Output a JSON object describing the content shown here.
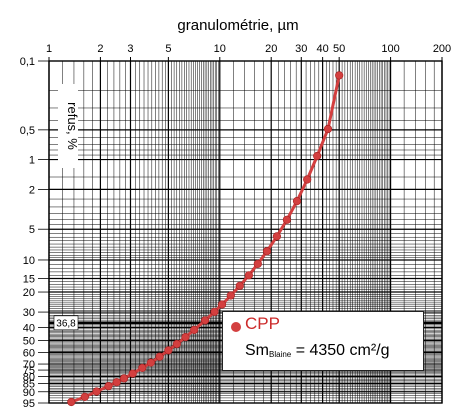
{
  "chart_data": {
    "type": "line",
    "subtype": "rosin-rammler-sperling-bennett",
    "title": "granulométrie, µm",
    "xlabel": "granulométrie, µm",
    "ylabel": "refus, %",
    "x_scale": "log",
    "y_scale": "rrsb",
    "xlim": [
      1,
      200
    ],
    "ylim": [
      0.1,
      95
    ],
    "grid": true,
    "x_ticks": [
      "1",
      "2",
      "3",
      "5",
      "10",
      "20",
      "30",
      "40",
      "50",
      "100",
      "200"
    ],
    "y_ticks": [
      "0,1",
      "0,5",
      "1",
      "2",
      "5",
      "10",
      "15",
      "20",
      "30",
      "40",
      "50",
      "60",
      "70",
      "75",
      "80",
      "85",
      "90",
      "95"
    ],
    "reference_line": {
      "label": "36,8",
      "y": 36.8
    },
    "legend_position": "bottom-right",
    "series": [
      {
        "name": "CPP",
        "color": "#d33f3f",
        "x": [
          1.35,
          1.62,
          1.9,
          2.23,
          2.49,
          2.75,
          3.09,
          3.52,
          3.95,
          4.44,
          5.0,
          5.61,
          6.3,
          7.08,
          8.2,
          9.31,
          10.3,
          11.6,
          13.1,
          14.8,
          16.7,
          18.9,
          21.6,
          24.7,
          28.3,
          32.5,
          37.2,
          43.0,
          50.0
        ],
        "values": [
          94.65,
          92.53,
          89.84,
          86.68,
          84.11,
          81.43,
          77.84,
          73.25,
          68.77,
          63.72,
          58.21,
          52.89,
          47.3,
          41.83,
          35.2,
          29.86,
          25.85,
          21.49,
          17.53,
          14.0,
          10.92,
          8.23,
          5.89,
          4.03,
          2.62,
          1.59,
          0.92,
          0.49,
          0.14
        ]
      }
    ]
  },
  "legend": {
    "series_label": "CPP",
    "note_prefix": "Sm",
    "note_subscript": "Blaine",
    "note_value": " = 4350 cm²/g"
  }
}
